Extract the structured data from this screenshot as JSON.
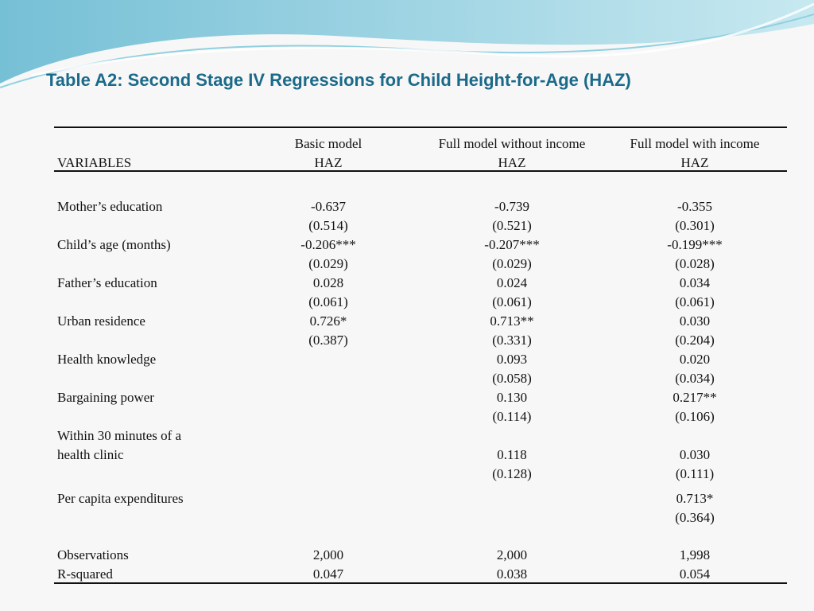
{
  "header": {
    "title": "Table A2: Second Stage IV Regressions for Child Height-for-Age (HAZ)"
  },
  "table": {
    "variables_label": "VARIABLES",
    "columns": [
      {
        "model": "Basic model",
        "dependent": "HAZ"
      },
      {
        "model": "Full model without income",
        "dependent": "HAZ"
      },
      {
        "model": "Full model with income",
        "dependent": "HAZ"
      }
    ],
    "rows": [
      {
        "label": "Mother’s education",
        "coef": [
          "-0.637",
          "-0.739",
          "-0.355"
        ],
        "se": [
          "(0.514)",
          "(0.521)",
          "(0.301)"
        ]
      },
      {
        "label": "Child’s age (months)",
        "coef": [
          "-0.206***",
          "-0.207***",
          "-0.199***"
        ],
        "se": [
          "(0.029)",
          "(0.029)",
          "(0.028)"
        ]
      },
      {
        "label": "Father’s education",
        "coef": [
          "0.028",
          "0.024",
          "0.034"
        ],
        "se": [
          "(0.061)",
          "(0.061)",
          "(0.061)"
        ]
      },
      {
        "label": "Urban residence",
        "coef": [
          "0.726*",
          "0.713**",
          "0.030"
        ],
        "se": [
          "(0.387)",
          "(0.331)",
          "(0.204)"
        ]
      },
      {
        "label": "Health knowledge",
        "coef": [
          null,
          "0.093",
          "0.020"
        ],
        "se": [
          null,
          "(0.058)",
          "(0.034)"
        ]
      },
      {
        "label": "Bargaining power",
        "coef": [
          null,
          "0.130",
          "0.217**"
        ],
        "se": [
          null,
          "(0.114)",
          "(0.106)"
        ]
      },
      {
        "label": "Within 30 minutes of a health clinic",
        "coef": [
          null,
          "0.118",
          "0.030"
        ],
        "se": [
          null,
          "(0.128)",
          "(0.111)"
        ]
      },
      {
        "label": "Per capita expenditures",
        "coef": [
          null,
          null,
          "0.713*"
        ],
        "se": [
          null,
          null,
          "(0.364)"
        ]
      }
    ],
    "stats": [
      {
        "label": "Observations",
        "values": [
          "2,000",
          "2,000",
          "1,998"
        ]
      },
      {
        "label": "R-squared",
        "values": [
          "0.047",
          "0.038",
          "0.054"
        ]
      }
    ]
  }
}
